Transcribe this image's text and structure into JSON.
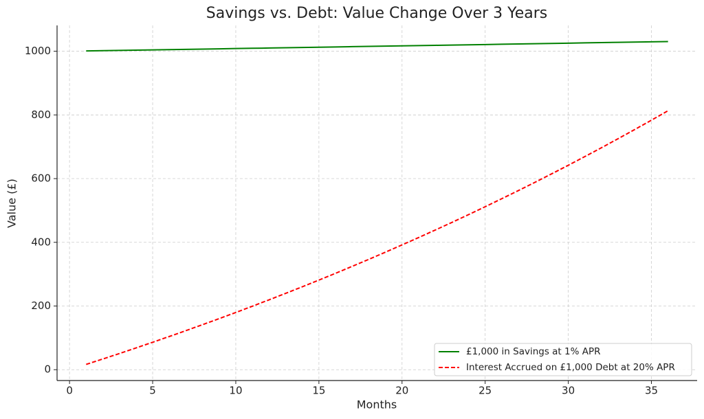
{
  "chart_data": {
    "type": "line",
    "title": "Savings vs. Debt: Value Change Over 3 Years",
    "xlabel": "Months",
    "ylabel": "Value (£)",
    "x": [
      1,
      2,
      3,
      4,
      5,
      6,
      7,
      8,
      9,
      10,
      11,
      12,
      13,
      14,
      15,
      16,
      17,
      18,
      19,
      20,
      21,
      22,
      23,
      24,
      25,
      26,
      27,
      28,
      29,
      30,
      31,
      32,
      33,
      34,
      35,
      36
    ],
    "series": [
      {
        "name": "£1,000 in Savings at 1% APR",
        "color": "#008000",
        "linestyle": "solid",
        "values": [
          1000.8,
          1001.7,
          1002.5,
          1003.3,
          1004.2,
          1005.0,
          1005.8,
          1006.7,
          1007.5,
          1008.4,
          1009.2,
          1010.0,
          1010.9,
          1011.7,
          1012.6,
          1013.4,
          1014.3,
          1015.1,
          1016.0,
          1016.8,
          1017.7,
          1018.5,
          1019.3,
          1020.2,
          1021.0,
          1021.9,
          1022.7,
          1023.6,
          1024.5,
          1025.3,
          1026.2,
          1027.0,
          1027.9,
          1028.7,
          1029.6,
          1030.4
        ]
      },
      {
        "name": "Interest Accrued on £1,000 Debt at 20% APR",
        "color": "#ff0000",
        "linestyle": "dashed",
        "values": [
          16.7,
          33.6,
          50.8,
          68.4,
          86.2,
          104.3,
          122.7,
          141.4,
          160.4,
          179.7,
          199.4,
          219.4,
          239.7,
          260.4,
          281.4,
          302.7,
          324.5,
          346.5,
          369.0,
          391.8,
          415.0,
          438.6,
          462.5,
          486.9,
          511.7,
          536.9,
          562.5,
          588.5,
          615.0,
          641.9,
          669.3,
          697.1,
          725.4,
          754.2,
          783.4,
          813.1
        ]
      }
    ],
    "xlim": [
      -0.75,
      37.75
    ],
    "xticks": [
      0,
      5,
      10,
      15,
      20,
      25,
      30,
      35
    ],
    "ylim": [
      -34,
      1081
    ],
    "yticks": [
      0,
      200,
      400,
      600,
      800,
      1000
    ],
    "grid": true,
    "legend": "lower-right"
  }
}
